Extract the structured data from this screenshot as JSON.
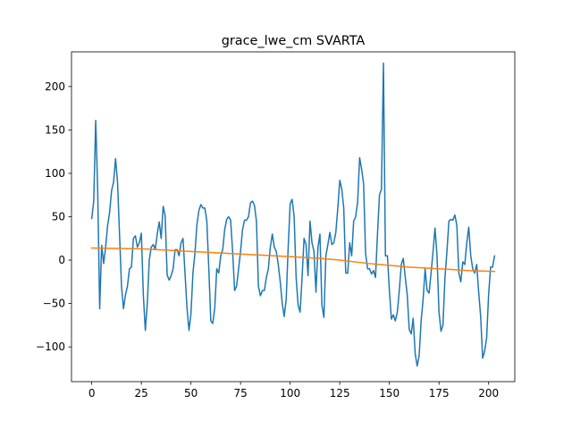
{
  "chart_data": {
    "type": "line",
    "title": "grace_lwe_cm SVARTA",
    "xlabel": "",
    "ylabel": "",
    "xlim": [
      -10.2,
      213.2
    ],
    "ylim": [
      -140,
      240
    ],
    "x_ticks": [
      0,
      25,
      50,
      75,
      100,
      125,
      150,
      175,
      200
    ],
    "y_ticks": [
      -100,
      -50,
      0,
      50,
      100,
      150,
      200
    ],
    "grid": false,
    "legend": "none",
    "series": [
      {
        "color": "#1f77b4",
        "x": [
          0,
          1,
          2,
          3,
          4,
          5,
          6,
          7,
          8,
          9,
          10,
          11,
          12,
          13,
          14,
          15,
          16,
          17,
          18,
          19,
          20,
          21,
          22,
          23,
          24,
          25,
          26,
          27,
          28,
          29,
          30,
          31,
          32,
          33,
          34,
          35,
          36,
          37,
          38,
          39,
          40,
          41,
          42,
          43,
          44,
          45,
          46,
          47,
          48,
          49,
          50,
          51,
          52,
          53,
          54,
          55,
          56,
          57,
          58,
          59,
          60,
          61,
          62,
          63,
          64,
          65,
          66,
          67,
          68,
          69,
          70,
          71,
          72,
          73,
          74,
          75,
          76,
          77,
          78,
          79,
          80,
          81,
          82,
          83,
          84,
          85,
          86,
          87,
          88,
          89,
          90,
          91,
          92,
          93,
          94,
          95,
          96,
          97,
          98,
          99,
          100,
          101,
          102,
          103,
          104,
          105,
          106,
          107,
          108,
          109,
          110,
          111,
          112,
          113,
          114,
          115,
          116,
          117,
          118,
          119,
          120,
          121,
          122,
          123,
          124,
          125,
          126,
          127,
          128,
          129,
          130,
          131,
          132,
          133,
          134,
          135,
          136,
          137,
          138,
          139,
          140,
          141,
          142,
          143,
          144,
          145,
          146,
          147,
          148,
          149,
          150,
          151,
          152,
          153,
          154,
          155,
          156,
          157,
          158,
          159,
          160,
          161,
          162,
          163,
          164,
          165,
          166,
          167,
          168,
          169,
          170,
          171,
          172,
          173,
          174,
          175,
          176,
          177,
          178,
          179,
          180,
          181,
          182,
          183,
          184,
          185,
          186,
          187,
          188,
          189,
          190,
          191,
          192,
          193,
          194,
          195,
          196,
          197,
          198,
          199,
          200,
          201,
          202,
          203
        ],
        "y": [
          48,
          68,
          161,
          80,
          -56,
          17,
          -4,
          15,
          40,
          55,
          80,
          90,
          117,
          90,
          30,
          -30,
          -56,
          -40,
          -30,
          -10,
          -8,
          25,
          28,
          15,
          20,
          31,
          -40,
          -81,
          -50,
          0,
          15,
          18,
          12,
          30,
          44,
          25,
          62,
          51,
          -17,
          -23,
          -18,
          -10,
          12,
          12,
          5,
          20,
          25,
          -15,
          -55,
          -81,
          -62,
          -15,
          8,
          41,
          57,
          64,
          60,
          60,
          45,
          -10,
          -70,
          -73,
          -55,
          -10,
          -15,
          5,
          12,
          35,
          47,
          50,
          46,
          10,
          -35,
          -30,
          -10,
          10,
          35,
          46,
          46,
          50,
          66,
          68,
          63,
          45,
          -30,
          -41,
          -35,
          -35,
          -20,
          -10,
          15,
          30,
          15,
          10,
          -5,
          -25,
          -50,
          -65,
          -45,
          15,
          65,
          70,
          50,
          -20,
          -52,
          -60,
          -20,
          25,
          18,
          -18,
          45,
          20,
          10,
          -37,
          15,
          30,
          -52,
          -66,
          5,
          18,
          32,
          18,
          20,
          32,
          60,
          92,
          82,
          60,
          -15,
          -15,
          20,
          5,
          45,
          50,
          67,
          118,
          105,
          88,
          8,
          -10,
          -10,
          -16,
          -12,
          -20,
          30,
          75,
          82,
          227,
          5,
          5,
          -35,
          -68,
          -63,
          -70,
          -60,
          -35,
          -5,
          2,
          -20,
          -40,
          -80,
          -85,
          -67,
          -108,
          -122,
          -110,
          -70,
          -45,
          -10,
          -35,
          -38,
          -15,
          10,
          37,
          5,
          -60,
          -82,
          -75,
          -20,
          10,
          45,
          47,
          46,
          52,
          40,
          -15,
          -25,
          -2,
          -5,
          20,
          38,
          5,
          -10,
          -15,
          -5,
          -37,
          -65,
          -113,
          -105,
          -90,
          -40,
          -8,
          -8,
          5
        ]
      },
      {
        "color": "#ff7f0e",
        "x": [
          0,
          25,
          50,
          75,
          100,
          115,
          125,
          140,
          150,
          160,
          175,
          190,
          203
        ],
        "y": [
          14,
          13,
          10,
          7,
          4,
          2,
          0,
          -4,
          -6,
          -8,
          -10,
          -12,
          -13
        ]
      }
    ]
  }
}
